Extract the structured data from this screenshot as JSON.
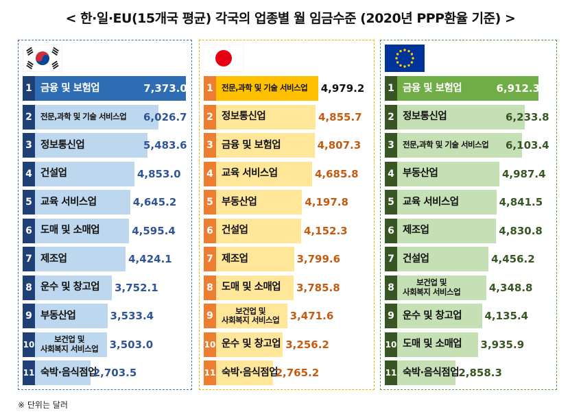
{
  "title": "< 한·일·EU(15개국 평균) 각국의 업종별 월 임금수준 (2020년 PPP환율 기준) >",
  "footnote": "※ 단위는 달러",
  "chart_data": [
    {
      "type": "bar",
      "panel": "korea",
      "flag_icon": "korea-flag-icon",
      "colors": {
        "number": "#1f3f77",
        "top_bar": "#2e6db4",
        "bar": "#bdd7ee",
        "value": "#2f5597"
      },
      "categories": [
        "금융 및 보험업",
        "전문,과학 및 기술 서비스업",
        "정보통신업",
        "건설업",
        "교육 서비스업",
        "도매 및 소매업",
        "제조업",
        "운수 및 창고업",
        "부동산업",
        "보건업 및 사회복지 서비스업",
        "숙박·음식점업"
      ],
      "display_labels": [
        "금융 및 보험업",
        "전문,과학 및 기술 서비스업",
        "정보통신업",
        "건설업",
        "교육 서비스업",
        "도매 및 소매업",
        "제조업",
        "운수 및 창고업",
        "부동산업",
        [
          "보건업 및",
          "사회복지 서비스업"
        ],
        "숙박·음식점업"
      ],
      "values": [
        7373.0,
        6026.7,
        5483.6,
        4853.0,
        4645.2,
        4595.4,
        4424.1,
        3752.1,
        3533.4,
        3503.0,
        2703.5
      ],
      "value_labels": [
        "7,373.0",
        "6,026.7",
        "5,483.6",
        "4,853.0",
        "4,645.2",
        "4,595.4",
        "4,424.1",
        "3,752.1",
        "3,533.4",
        "3,503.0",
        "2,703.5"
      ],
      "ranks": [
        "1",
        "2",
        "3",
        "4",
        "5",
        "6",
        "7",
        "8",
        "9",
        "10",
        "11"
      ]
    },
    {
      "type": "bar",
      "panel": "japan",
      "flag_icon": "japan-flag-icon",
      "colors": {
        "number": "#ed7d31",
        "top_bar": "#ffc000",
        "bar": "#ffe699",
        "value": "#c55a11"
      },
      "categories": [
        "전문,과학 및 기술 서비스업",
        "정보통신업",
        "금융 및 보험업",
        "교육 서비스업",
        "부동산업",
        "건설업",
        "제조업",
        "도매 및 소매업",
        "보건업 및 사회복지 서비스업",
        "운수 및 창고업",
        "숙박·음식점업"
      ],
      "display_labels": [
        "전문,과학 및 기술 서비스업",
        "정보통신업",
        "금융 및 보험업",
        "교육 서비스업",
        "부동산업",
        "건설업",
        "제조업",
        "도매 및 소매업",
        [
          "보건업 및",
          "사회복지 서비스업"
        ],
        "운수 및 창고업",
        "숙박·음식점업"
      ],
      "values": [
        4979.2,
        4855.7,
        4807.3,
        4685.8,
        4197.8,
        4152.3,
        3799.6,
        3785.8,
        3471.6,
        3256.2,
        2765.2
      ],
      "value_labels": [
        "4,979.2",
        "4,855.7",
        "4,807.3",
        "4,685.8",
        "4,197.8",
        "4,152.3",
        "3,799.6",
        "3,785.8",
        "3,471.6",
        "3,256.2",
        "2,765.2"
      ],
      "ranks": [
        "1",
        "2",
        "3",
        "4",
        "5",
        "6",
        "7",
        "8",
        "9",
        "10",
        "11"
      ]
    },
    {
      "type": "bar",
      "panel": "eu",
      "flag_icon": "eu-flag-icon",
      "colors": {
        "number": "#375623",
        "top_bar": "#70ad47",
        "bar": "#c5e0b4",
        "value": "#375623"
      },
      "categories": [
        "금융 및 보험업",
        "정보통신업",
        "전문,과학 및 기술 서비스업",
        "부동산업",
        "교육 서비스업",
        "제조업",
        "건설업",
        "보건업 및 사회복지 서비스업",
        "운수 및 창고업",
        "도매 및 소매업",
        "숙박·음식점업"
      ],
      "display_labels": [
        "금융 및 보험업",
        "정보통신업",
        "전문,과학 및 기술 서비스업",
        "부동산업",
        "교육 서비스업",
        "제조업",
        "건설업",
        [
          "보건업 및",
          "사회복지 서비스업"
        ],
        "운수 및 창고업",
        "도매 및 소매업",
        "숙박·음식점업"
      ],
      "values": [
        6912.3,
        6233.8,
        6103.4,
        4987.4,
        4841.5,
        4830.8,
        4456.2,
        4348.8,
        4135.4,
        3935.9,
        2858.3
      ],
      "value_labels": [
        "6,912.3",
        "6,233.8",
        "6,103.4",
        "4,987.4",
        "4,841.5",
        "4,830.8",
        "4,456.2",
        "4,348.8",
        "4,135.4",
        "3,935.9",
        "2,858.3"
      ],
      "ranks": [
        "1",
        "2",
        "3",
        "4",
        "5",
        "6",
        "7",
        "8",
        "9",
        "10",
        "11"
      ]
    }
  ]
}
